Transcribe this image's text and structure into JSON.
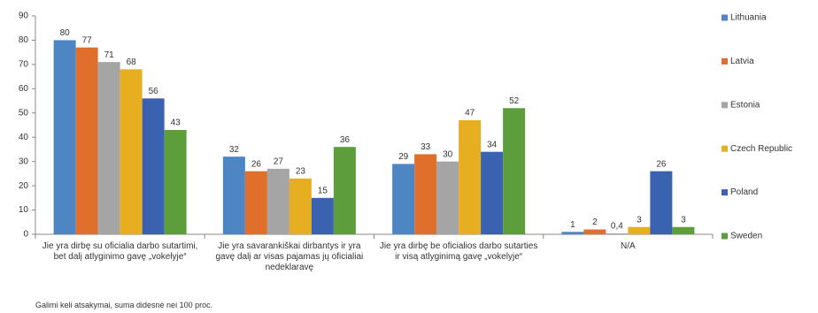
{
  "chart_data": {
    "type": "bar",
    "categories": [
      "Jie yra dirbę su oficialia darbo sutartimi, bet dalį atlyginimo gavę „vokelyje“",
      "Jie yra savarankiškai dirbantys ir yra gavę dalį ar visas pajamas jų oficialiai nedeklaravę",
      "Jie yra dirbę be oficialios darbo sutarties ir visą atlyginimą gavę „vokelyje“",
      "N/A"
    ],
    "series": [
      {
        "name": "Lithuania",
        "color": "#4e86c3",
        "values": [
          80,
          32,
          29,
          1
        ]
      },
      {
        "name": "Latvia",
        "color": "#df6f2b",
        "values": [
          77,
          26,
          33,
          2
        ]
      },
      {
        "name": "Estonia",
        "color": "#a5a5a5",
        "values": [
          71,
          27,
          30,
          0.4
        ],
        "value_labels": [
          "71",
          "27",
          "30",
          "0,4"
        ]
      },
      {
        "name": "Czech Republic",
        "color": "#e8ae22",
        "values": [
          68,
          23,
          47,
          3
        ]
      },
      {
        "name": "Poland",
        "color": "#3b62b0",
        "values": [
          56,
          15,
          34,
          26
        ]
      },
      {
        "name": "Sweden",
        "color": "#5e9d3c",
        "values": [
          43,
          36,
          52,
          3
        ]
      }
    ],
    "ylim": [
      0,
      90
    ],
    "yticks": [
      0,
      10,
      20,
      30,
      40,
      50,
      60,
      70,
      80,
      90
    ],
    "grid": false,
    "legend": "right",
    "note": "Galimi keli atsakymai, suma didesnė nei 100 proc."
  }
}
